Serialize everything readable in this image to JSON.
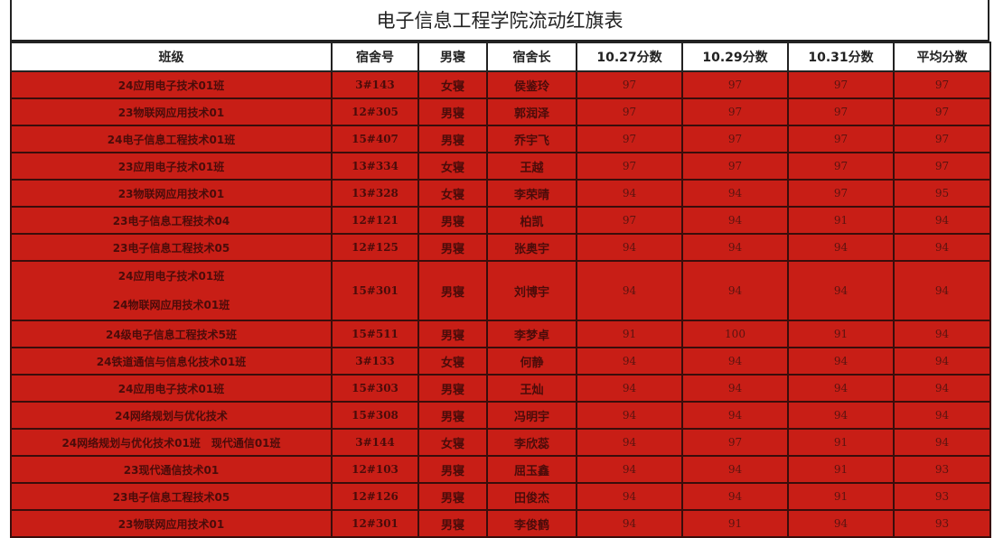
{
  "title": "电子信息工程学院流动红旗表",
  "columns": [
    "班级",
    "宿舍号",
    "男寝",
    "宿舍长",
    "10.27分数",
    "10.29分数",
    "10.31分数",
    "平均分数"
  ],
  "rows": [
    {
      "class": [
        "24应用电子技术01班"
      ],
      "room": "3#143",
      "type": "女寝",
      "leader": "侯鉴玲",
      "s1": "97",
      "s2": "97",
      "s3": "97",
      "avg": "97"
    },
    {
      "class": [
        "23物联网应用技术01"
      ],
      "room": "12#305",
      "type": "男寝",
      "leader": "郭润泽",
      "s1": "97",
      "s2": "97",
      "s3": "97",
      "avg": "97"
    },
    {
      "class": [
        "24电子信息工程技术01班"
      ],
      "room": "15#407",
      "type": "男寝",
      "leader": "乔宇飞",
      "s1": "97",
      "s2": "97",
      "s3": "97",
      "avg": "97"
    },
    {
      "class": [
        "23应用电子技术01班"
      ],
      "room": "13#334",
      "type": "女寝",
      "leader": "王越",
      "s1": "97",
      "s2": "97",
      "s3": "97",
      "avg": "97"
    },
    {
      "class": [
        "23物联网应用技术01"
      ],
      "room": "13#328",
      "type": "女寝",
      "leader": "李荣晴",
      "s1": "94",
      "s2": "94",
      "s3": "97",
      "avg": "95"
    },
    {
      "class": [
        "23电子信息工程技术04"
      ],
      "room": "12#121",
      "type": "男寝",
      "leader": "柏凯",
      "s1": "97",
      "s2": "94",
      "s3": "91",
      "avg": "94"
    },
    {
      "class": [
        "23电子信息工程技术05"
      ],
      "room": "12#125",
      "type": "男寝",
      "leader": "张奥宇",
      "s1": "94",
      "s2": "94",
      "s3": "94",
      "avg": "94"
    },
    {
      "class": [
        "24应用电子技术01班",
        "24物联网应用技术01班"
      ],
      "room": "15#301",
      "type": "男寝",
      "leader": "刘博宇",
      "s1": "94",
      "s2": "94",
      "s3": "94",
      "avg": "94"
    },
    {
      "class": [
        "24级电子信息工程技术5班"
      ],
      "room": "15#511",
      "type": "男寝",
      "leader": "李梦卓",
      "s1": "91",
      "s2": "100",
      "s3": "91",
      "avg": "94"
    },
    {
      "class": [
        "24铁道通信与信息化技术01班"
      ],
      "room": "3#133",
      "type": "女寝",
      "leader": "何静",
      "s1": "94",
      "s2": "94",
      "s3": "94",
      "avg": "94"
    },
    {
      "class": [
        "24应用电子技术01班"
      ],
      "room": "15#303",
      "type": "男寝",
      "leader": "王灿",
      "s1": "94",
      "s2": "94",
      "s3": "94",
      "avg": "94"
    },
    {
      "class": [
        "24网络规划与优化技术"
      ],
      "room": "15#308",
      "type": "男寝",
      "leader": "冯明宇",
      "s1": "94",
      "s2": "94",
      "s3": "94",
      "avg": "94"
    },
    {
      "class": [
        "24网络规划与优化技术01班　现代通信01班"
      ],
      "room": "3#144",
      "type": "女寝",
      "leader": "李欣蕊",
      "s1": "94",
      "s2": "97",
      "s3": "91",
      "avg": "94"
    },
    {
      "class": [
        "23现代通信技术01"
      ],
      "room": "12#103",
      "type": "男寝",
      "leader": "屈玉鑫",
      "s1": "94",
      "s2": "94",
      "s3": "91",
      "avg": "93"
    },
    {
      "class": [
        "23电子信息工程技术05"
      ],
      "room": "12#126",
      "type": "男寝",
      "leader": "田俊杰",
      "s1": "94",
      "s2": "94",
      "s3": "91",
      "avg": "93"
    },
    {
      "class": [
        "23物联网应用技术01"
      ],
      "room": "12#301",
      "type": "男寝",
      "leader": "李俊鹤",
      "s1": "94",
      "s2": "91",
      "s3": "94",
      "avg": "93"
    }
  ],
  "colors": {
    "row_fill": "#c81e16",
    "text": "#4a0c0a"
  }
}
